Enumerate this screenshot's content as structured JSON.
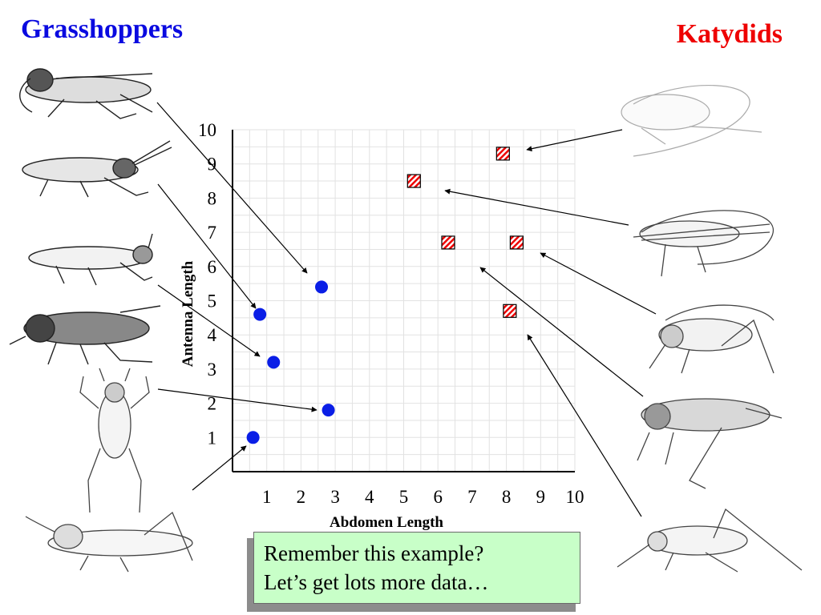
{
  "slide": {
    "title_left": "Grasshoppers",
    "title_right": "Katydids",
    "callout_line1": "Remember this example?",
    "callout_line2": "Let’s get lots more data…"
  },
  "colors": {
    "grasshopper": "#0a1ee6",
    "katydid": "#ee0000",
    "title_left": "#0a0ae0",
    "title_right": "#ee0000",
    "callout_bg": "#c8ffc8"
  },
  "chart_data": {
    "type": "scatter",
    "xlabel": "Abdomen Length",
    "ylabel": "Antenna Length",
    "xlim": [
      0,
      10
    ],
    "ylim": [
      0,
      10
    ],
    "xticks": [
      "1",
      "2",
      "3",
      "4",
      "5",
      "6",
      "7",
      "8",
      "9",
      "10"
    ],
    "yticks": [
      "1",
      "2",
      "3",
      "4",
      "5",
      "6",
      "7",
      "8",
      "9",
      "10"
    ],
    "grid": true,
    "series": [
      {
        "marker": "circle",
        "points": [
          {
            "x": 0.6,
            "y": 1.0
          },
          {
            "x": 0.8,
            "y": 4.6
          },
          {
            "x": 1.2,
            "y": 3.2
          },
          {
            "x": 2.6,
            "y": 5.4
          },
          {
            "x": 2.8,
            "y": 1.8
          }
        ]
      },
      {
        "marker": "hatched-square",
        "points": [
          {
            "x": 5.3,
            "y": 8.5
          },
          {
            "x": 6.3,
            "y": 6.7
          },
          {
            "x": 7.9,
            "y": 9.3
          },
          {
            "x": 8.3,
            "y": 6.7
          },
          {
            "x": 8.1,
            "y": 4.7
          }
        ]
      }
    ]
  }
}
